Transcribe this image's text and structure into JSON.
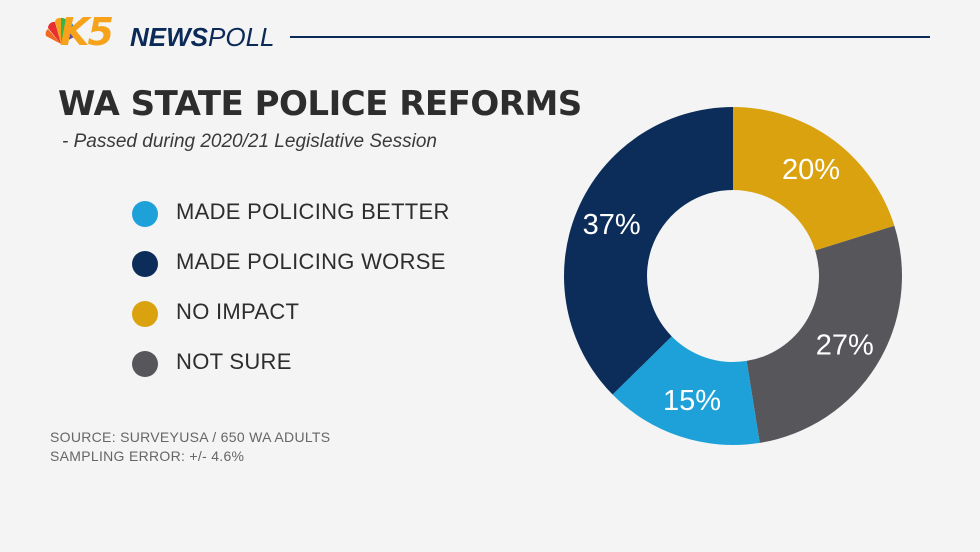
{
  "header": {
    "logo_k5": "K5",
    "logo_news": "NEWS",
    "logo_poll": "POLL"
  },
  "chart_data": {
    "type": "pie",
    "title": "WA STATE POLICE REFORMS",
    "subtitle": "- Passed during 2020/21 Legislative Session",
    "legend_position": "left",
    "categories": [
      "MADE POLICING BETTER",
      "MADE POLICING WORSE",
      "NO IMPACT",
      "NOT SURE"
    ],
    "values": [
      15,
      37,
      20,
      27
    ],
    "value_labels": [
      "15%",
      "37%",
      "20%",
      "27%"
    ],
    "colors": [
      "#1ea1d9",
      "#0c2d5a",
      "#d9a20e",
      "#57575b"
    ]
  },
  "source": {
    "line1": "SOURCE: SURVEYUSA / 650 WA ADULTS",
    "line2": "SAMPLING ERROR:  +/- 4.6%"
  }
}
